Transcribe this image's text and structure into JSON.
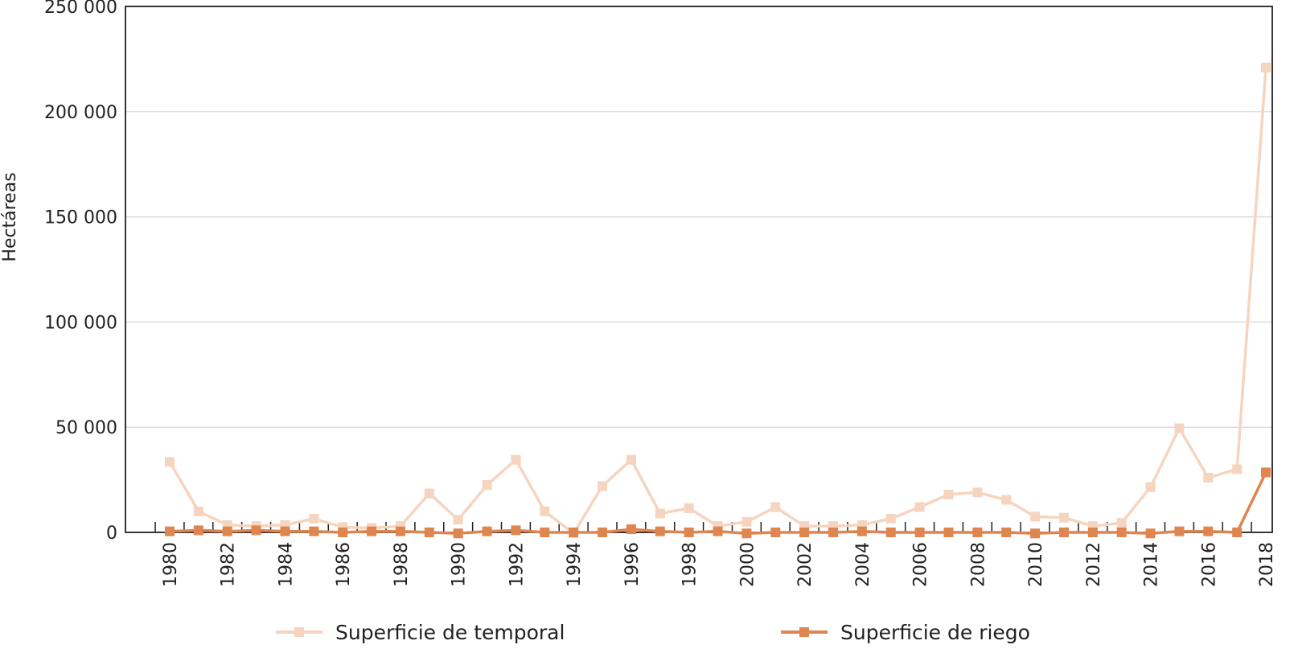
{
  "chart_data": {
    "type": "line",
    "title": "",
    "xlabel": "",
    "ylabel": "Hectáreas",
    "ylim": [
      0,
      250000
    ],
    "grid": true,
    "legend_position": "bottom",
    "x": [
      1980,
      1981,
      1982,
      1983,
      1984,
      1985,
      1986,
      1987,
      1988,
      1989,
      1990,
      1991,
      1992,
      1993,
      1994,
      1995,
      1996,
      1997,
      1998,
      1999,
      2000,
      2001,
      2002,
      2003,
      2004,
      2005,
      2006,
      2007,
      2008,
      2009,
      2010,
      2011,
      2012,
      2013,
      2014,
      2015,
      2016,
      2017,
      2018
    ],
    "x_tick_labels": [
      "1980",
      "1982",
      "1984",
      "1986",
      "1988",
      "1990",
      "1992",
      "1994",
      "1996",
      "1998",
      "2000",
      "2002",
      "2004",
      "2006",
      "2008",
      "2010",
      "2012",
      "2014",
      "2016",
      "2018"
    ],
    "y_tick_labels": [
      "0",
      "50 000",
      "100 000",
      "150 000",
      "200 000",
      "250 000"
    ],
    "y_ticks": [
      0,
      50000,
      100000,
      150000,
      200000,
      250000
    ],
    "series": [
      {
        "name": "Superficie de temporal",
        "color": "#f5d5bf",
        "values": [
          33500,
          10000,
          3500,
          3000,
          3500,
          6500,
          2500,
          2000,
          3000,
          18500,
          6000,
          22500,
          34500,
          10000,
          -500,
          22000,
          34500,
          9000,
          11500,
          3000,
          5000,
          12000,
          3000,
          3000,
          3500,
          6500,
          12000,
          18000,
          19000,
          15500,
          7500,
          7000,
          3000,
          4500,
          21500,
          49500,
          26000,
          30000,
          221000
        ]
      },
      {
        "name": "Superficie de riego",
        "color": "#df8550",
        "values": [
          500,
          1000,
          500,
          1000,
          500,
          500,
          0,
          500,
          500,
          0,
          -500,
          500,
          1000,
          0,
          0,
          0,
          1500,
          500,
          0,
          500,
          -500,
          0,
          0,
          0,
          500,
          0,
          0,
          0,
          0,
          0,
          -500,
          0,
          0,
          0,
          -500,
          500,
          500,
          0,
          28500
        ]
      }
    ]
  }
}
